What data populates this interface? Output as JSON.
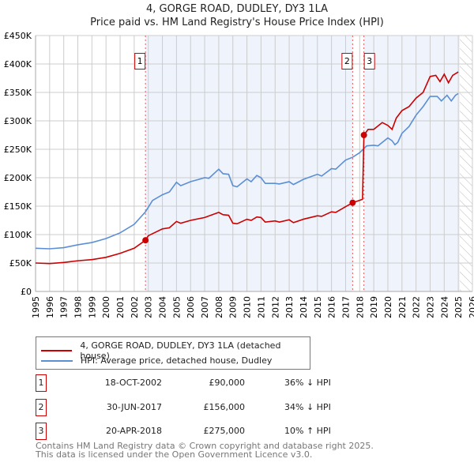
{
  "title": "4, GORGE ROAD, DUDLEY, DY3 1LA",
  "subtitle": "Price paid vs. HM Land Registry's House Price Index (HPI)",
  "legend": {
    "property": "4, GORGE ROAD, DUDLEY, DY3 1LA (detached house)",
    "hpi": "HPI: Average price, detached house, Dudley"
  },
  "sales": [
    {
      "num": "1",
      "date": "18-OCT-2002",
      "price": "£90,000",
      "hpi": "36% ↓ HPI",
      "x": 2002.8,
      "y": 90
    },
    {
      "num": "2",
      "date": "30-JUN-2017",
      "price": "£156,000",
      "hpi": "34% ↓ HPI",
      "x": 2017.5,
      "y": 156
    },
    {
      "num": "3",
      "date": "20-APR-2018",
      "price": "£275,000",
      "hpi": "10% ↑ HPI",
      "x": 2018.3,
      "y": 275
    }
  ],
  "footer": [
    "Contains HM Land Registry data © Crown copyright and database right 2025.",
    "This data is licensed under the Open Government Licence v3.0."
  ],
  "colors": {
    "property": "#cc0000",
    "hpi": "#5b8fd4",
    "shade": "#eef3fc",
    "grid": "#cccccc"
  },
  "chart_data": {
    "type": "line",
    "xlim": [
      1995,
      2026
    ],
    "ylim": [
      0,
      450
    ],
    "yticks": [
      0,
      50,
      100,
      150,
      200,
      250,
      300,
      350,
      400,
      450
    ],
    "ytick_labels": [
      "£0",
      "£50K",
      "£100K",
      "£150K",
      "£200K",
      "£250K",
      "£300K",
      "£350K",
      "£400K",
      "£450K"
    ],
    "xticks": [
      1995,
      1996,
      1997,
      1998,
      1999,
      2000,
      2001,
      2002,
      2003,
      2004,
      2005,
      2006,
      2007,
      2008,
      2009,
      2010,
      2011,
      2012,
      2013,
      2014,
      2015,
      2016,
      2017,
      2018,
      2019,
      2020,
      2021,
      2022,
      2023,
      2024,
      2025,
      2026
    ],
    "forecast_from": 2025.1,
    "series": [
      {
        "name": "HPI: Average price, detached house, Dudley",
        "color": "#5b8fd4",
        "x": [
          1995,
          1996,
          1997,
          1998,
          1999,
          2000,
          2001,
          2002,
          2002.8,
          2003,
          2003.3,
          2004,
          2004.5,
          2005,
          2005.3,
          2006,
          2007,
          2007.3,
          2008,
          2008.3,
          2008.7,
          2009,
          2009.3,
          2010,
          2010.3,
          2010.7,
          2011,
          2011.3,
          2012,
          2012.3,
          2013,
          2013.3,
          2014,
          2015,
          2015.3,
          2016,
          2016.3,
          2017,
          2017.5,
          2018,
          2018.5,
          2019,
          2019.3,
          2020,
          2020.3,
          2020.5,
          2020.7,
          2021,
          2021.5,
          2022,
          2022.5,
          2023,
          2023.5,
          2023.8,
          2024.2,
          2024.5,
          2024.8,
          2025
        ],
        "y": [
          76,
          75,
          77,
          82,
          86,
          93,
          103,
          118,
          140,
          148,
          160,
          170,
          175,
          192,
          186,
          193,
          200,
          199,
          215,
          207,
          206,
          186,
          184,
          198,
          193,
          204,
          200,
          190,
          190,
          189,
          193,
          188,
          197,
          206,
          203,
          216,
          215,
          231,
          236,
          244,
          256,
          257,
          256,
          270,
          265,
          258,
          262,
          278,
          290,
          310,
          325,
          343,
          343,
          335,
          345,
          335,
          345,
          348
        ]
      },
      {
        "name": "4, GORGE ROAD, DUDLEY, DY3 1LA (detached house)",
        "color": "#cc0000",
        "x": [
          1995,
          1996,
          1997,
          1998,
          1999,
          2000,
          2001,
          2002,
          2002.8,
          2003,
          2004,
          2004.5,
          2005,
          2005.3,
          2006,
          2007,
          2008,
          2008.3,
          2008.7,
          2009,
          2009.3,
          2010,
          2010.3,
          2010.7,
          2011,
          2011.3,
          2012,
          2012.3,
          2013,
          2013.3,
          2014,
          2015,
          2015.3,
          2016,
          2016.3,
          2017,
          2017.5,
          2018.2,
          2018.3,
          2018.6,
          2019,
          2019.6,
          2020,
          2020.3,
          2020.6,
          2021,
          2021.5,
          2022,
          2022.5,
          2023,
          2023.4,
          2023.7,
          2024,
          2024.3,
          2024.6,
          2025
        ],
        "y": [
          50,
          49,
          51,
          54,
          56,
          60,
          67,
          76,
          90,
          98,
          110,
          112,
          123,
          120,
          125,
          130,
          139,
          135,
          134,
          120,
          119,
          127,
          125,
          131,
          130,
          122,
          124,
          122,
          126,
          121,
          127,
          133,
          132,
          140,
          139,
          149,
          156,
          162,
          275,
          285,
          285,
          297,
          292,
          285,
          305,
          318,
          325,
          340,
          350,
          378,
          380,
          369,
          382,
          367,
          380,
          386
        ]
      }
    ]
  }
}
